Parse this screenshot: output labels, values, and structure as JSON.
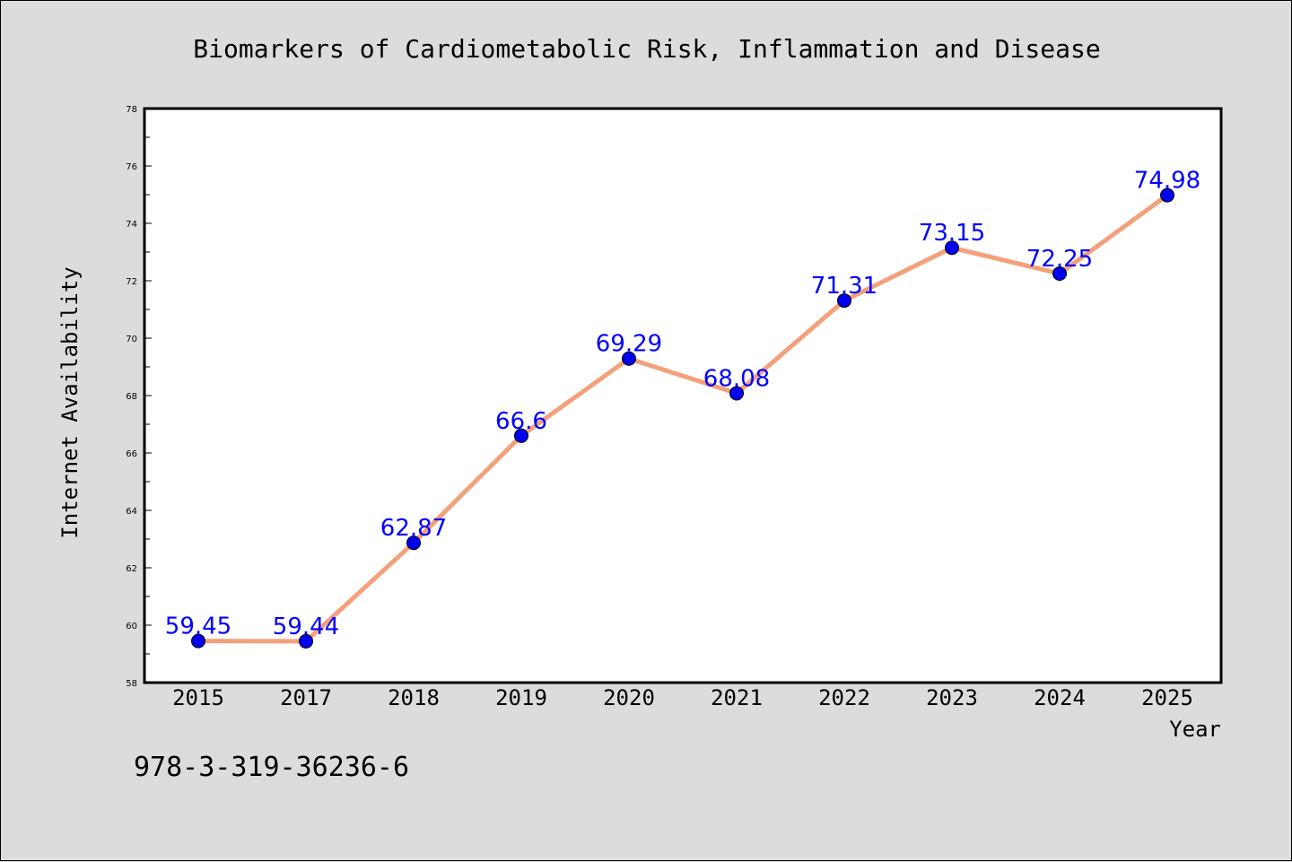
{
  "chart_data": {
    "type": "line",
    "title": "Biomarkers of Cardiometabolic Risk, Inflammation and Disease",
    "xlabel": "Year",
    "ylabel": "Internet Availability",
    "categories": [
      "2015",
      "2017",
      "2018",
      "2019",
      "2020",
      "2021",
      "2022",
      "2023",
      "2024",
      "2025"
    ],
    "series": [
      {
        "values": [
          59.45,
          59.44,
          62.87,
          66.6,
          69.29,
          68.08,
          71.31,
          73.15,
          72.25,
          74.98
        ],
        "data_labels": [
          "59.45",
          "59.44",
          "62.87",
          "66.6",
          "69.29",
          "68.08",
          "71.31",
          "73.15",
          "72.25",
          "74.98"
        ]
      }
    ],
    "ylim": [
      58,
      78
    ],
    "yticks": [
      58,
      60,
      62,
      64,
      66,
      68,
      70,
      72,
      74,
      76,
      78
    ],
    "ytick_labels": [
      "58",
      "60",
      "62",
      "64",
      "66",
      "68",
      "70",
      "72",
      "74",
      "76",
      "78"
    ],
    "grid": false,
    "legend": "none",
    "annotation": "978-3-319-36236-6",
    "colors": {
      "line": "#f4a07a",
      "marker": "#0000ee",
      "data_label": "#0000ff",
      "background": "#dcdcdc",
      "plot_background": "#ffffff"
    }
  }
}
